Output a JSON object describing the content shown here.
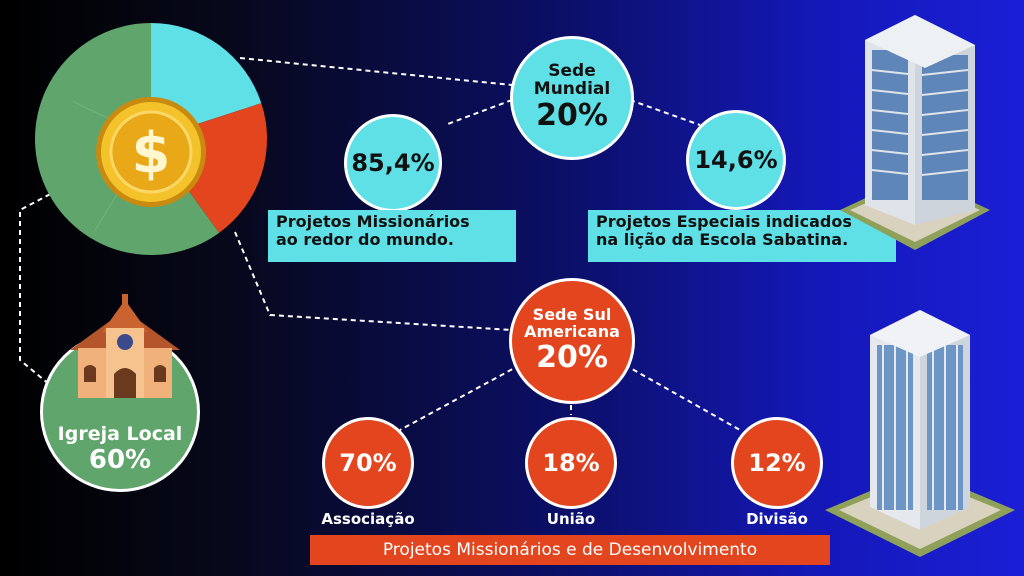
{
  "pie": {
    "slices_pct": [
      20,
      20,
      60
    ],
    "colors": [
      "#5fe0e6",
      "#e3451e",
      "#5fa56c"
    ],
    "icon": "dollar-coin-icon"
  },
  "sede_mundial": {
    "title_1": "Sede",
    "title_2": "Mundial",
    "pct": "20%"
  },
  "mundial_left": {
    "pct": "85,4%",
    "label_1": "Projetos Missionários",
    "label_2": "ao redor do mundo."
  },
  "mundial_right": {
    "pct": "14,6%",
    "label_1": "Projetos Especiais indicados",
    "label_2": "na lição da Escola Sabatina."
  },
  "sede_sul": {
    "title_1": "Sede Sul",
    "title_2": "Americana",
    "pct": "20%"
  },
  "sul_items": [
    {
      "pct": "70%",
      "label": "Associação"
    },
    {
      "pct": "18%",
      "label": "União"
    },
    {
      "pct": "12%",
      "label": "Divisão"
    }
  ],
  "sul_footer": "Projetos Missionários e de Desenvolvimento",
  "igreja": {
    "title": "Igreja Local",
    "pct": "60%",
    "icon": "church-icon"
  },
  "colors": {
    "cyan": "#5fe0e6",
    "red": "#e3451e",
    "green": "#5fa56c"
  }
}
